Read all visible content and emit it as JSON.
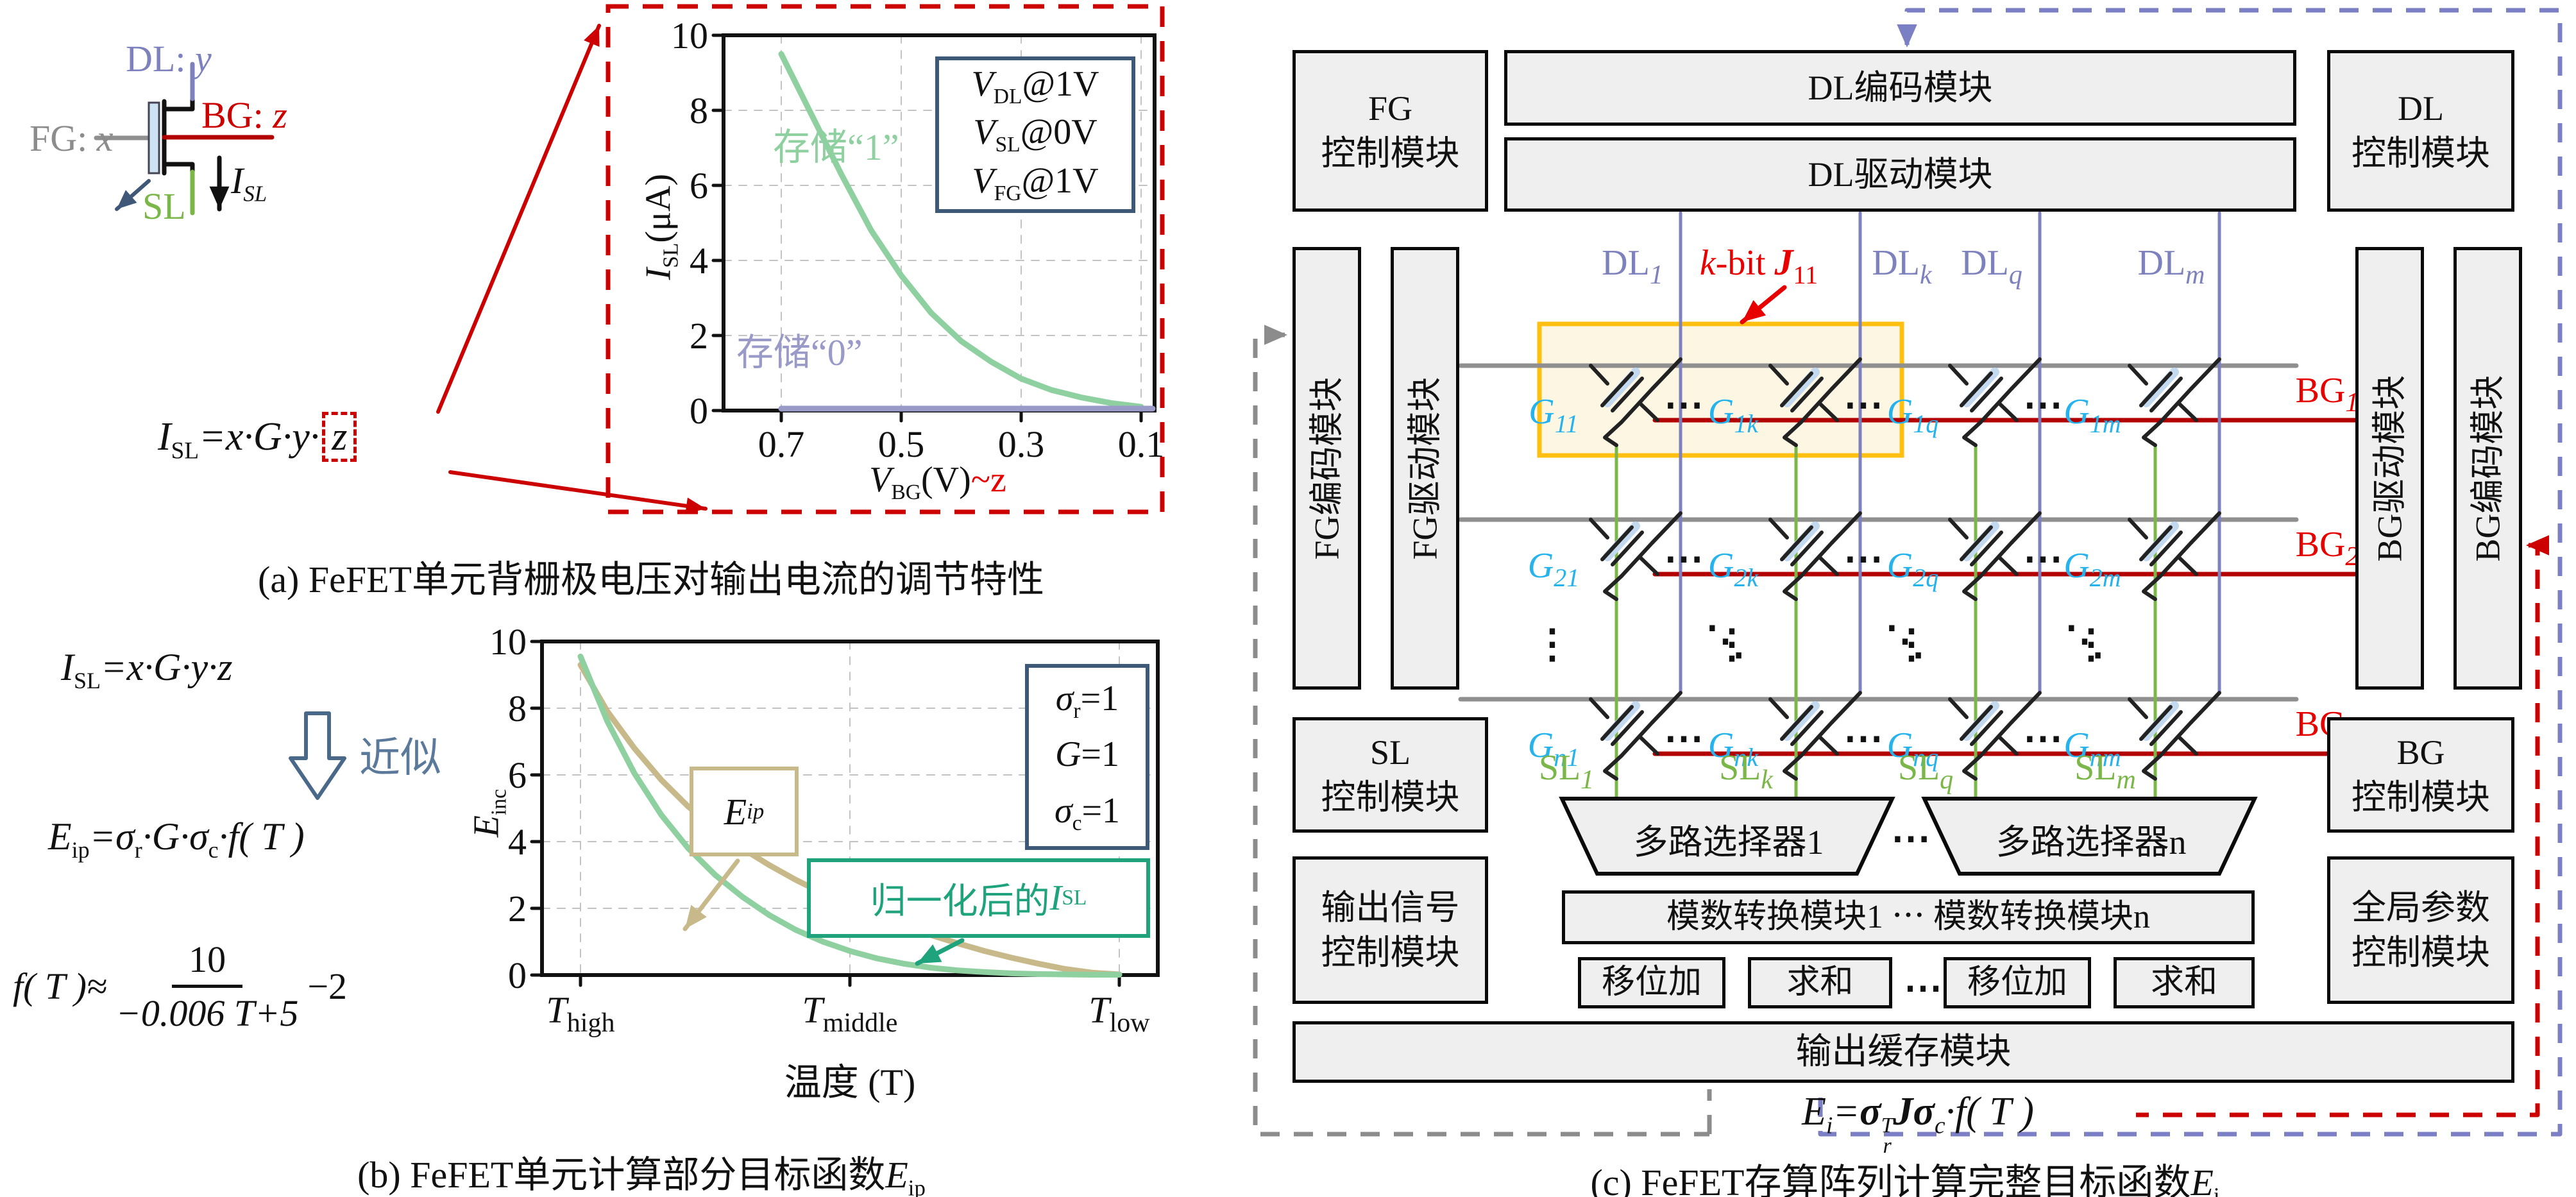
{
  "colors": {
    "purple": "#7d81bd",
    "purple_dash": "#7b7fc4",
    "gray": "#8c8c8c",
    "gray_line": "#8f8f8f",
    "red": "#cc0000",
    "red_bright": "#e80000",
    "bg_line": "#b30000",
    "green": "#7ab648",
    "curve_green": "#8fd0a0",
    "curve_purple": "#9a9ac8",
    "tan": "#c8b98a",
    "teal": "#1fa37c",
    "cyan": "#25b3ee",
    "slate": "#3e5877",
    "box_fill": "#efefef",
    "yellow": "#ffc011",
    "yellow_fill": "#fdf6e3"
  },
  "panel_a": {
    "caption": "(a) FeFET单元背栅极电压对输出电流的调节特性",
    "device": {
      "dl_label": "DL:",
      "dl_var": "y",
      "fg_label": "FG:",
      "fg_var": "x",
      "bg_label": "BG:",
      "bg_var": "z",
      "sl_label": "SL",
      "isl_main": "I",
      "isl_sub": "SL"
    },
    "equation": {
      "lhs": "I",
      "lhs_sub": "SL",
      "mid": "=x·G·y·",
      "boxed": "z"
    },
    "store1": "存储“1”",
    "store0": "存储“0”",
    "legend": [
      {
        "v": "V",
        "sub": "DL",
        "rest": "@1V"
      },
      {
        "v": "V",
        "sub": "SL",
        "rest": "@0V"
      },
      {
        "v": "V",
        "sub": "FG",
        "rest": "@1V"
      }
    ],
    "ylabel": {
      "pre": "I",
      "sub": "SL",
      "post": "(μA)"
    },
    "xlabel": {
      "pre": "V",
      "sub": "BG",
      "post": "(V)",
      "anno": "~z"
    }
  },
  "panel_b": {
    "caption_text": "(b) FeFET单元计算部分目标函数",
    "caption_var": "E",
    "caption_sub": "ip",
    "eq1": {
      "lhs": "I",
      "lhs_sub": "SL",
      "rhs": "=x·G·y·z"
    },
    "approx": "近似",
    "eq2": {
      "lhs": "E",
      "lhs_sub": "ip",
      "p1": "=σ",
      "s1": "r",
      "p2": "·G·σ",
      "s2": "c",
      "p3": "·f( T )"
    },
    "eq3": {
      "lhs": "f( T )≈",
      "num": "10",
      "den": "−0.006 T+5",
      "tail": "−2"
    },
    "eip_label": {
      "main": "E",
      "sub": "ip"
    },
    "norm_label": {
      "pre": "归一化后的",
      "main": "I",
      "sub": "SL"
    },
    "legend": [
      {
        "pre": "σ",
        "sub": "r",
        "post": "=1"
      },
      {
        "pre": "G",
        "sub": "",
        "post": "=1"
      },
      {
        "pre": "σ",
        "sub": "c",
        "post": "=1"
      }
    ],
    "ylabel": {
      "pre": "E",
      "sub": "inc"
    },
    "xlabel": "温度 (T)"
  },
  "panel_c": {
    "caption_text": "(c) FeFET存算阵列计算完整目标函数",
    "caption_var": "E",
    "caption_sub": "i",
    "modules": {
      "fg_ctrl": {
        "l1": "FG",
        "l2": "控制模块"
      },
      "dl_enc": "DL编码模块",
      "dl_drv": "DL驱动模块",
      "dl_ctrl": {
        "l1": "DL",
        "l2": "控制模块"
      },
      "fg_enc": "FG编码模块",
      "fg_drv": "FG驱动模块",
      "bg_drv": "BG驱动模块",
      "bg_enc": "BG编码模块",
      "sl_ctrl": {
        "l1": "SL",
        "l2": "控制模块"
      },
      "out_sig": {
        "l1": "输出信号",
        "l2": "控制模块"
      },
      "bg_ctrl": {
        "l1": "BG",
        "l2": "控制模块"
      },
      "gparam": {
        "l1": "全局参数",
        "l2": "控制模块"
      },
      "mux1": "多路选择器1",
      "mux_dots": "⋯",
      "muxn": "多路选择器n",
      "adc": "模数转换模块1 ⋯ 模数转换模块n",
      "shift_a": "移位加",
      "sum_a": "求和",
      "ss_dots": "⋯",
      "shift_b": "移位加",
      "sum_b": "求和",
      "buffer": "输出缓存模块"
    },
    "array": {
      "dl_labels": [
        {
          "main": "DL",
          "sub": "1"
        },
        {
          "main": "DL",
          "sub": "k"
        },
        {
          "main": "DL",
          "sub": "q"
        },
        {
          "main": "DL",
          "sub": "m"
        }
      ],
      "bg_labels": [
        {
          "main": "BG",
          "sub": "1"
        },
        {
          "main": "BG",
          "sub": "2"
        },
        {
          "main": "BG",
          "sub": "n"
        }
      ],
      "sl_labels": [
        {
          "main": "SL",
          "sub": "1"
        },
        {
          "main": "SL",
          "sub": "k"
        },
        {
          "main": "SL",
          "sub": "q"
        },
        {
          "main": "SL",
          "sub": "m"
        }
      ],
      "g_main": "G",
      "g_subs": [
        [
          "11",
          "1k",
          "1q",
          "1m"
        ],
        [
          "21",
          "2k",
          "2q",
          "2m"
        ],
        [
          "n1",
          "nk",
          "nq",
          "nm"
        ]
      ],
      "kbit": {
        "k": "k",
        "bit": "-bit ",
        "J": "J",
        "sub": "11"
      },
      "col_dots": "⋯",
      "vdots": "⋮",
      "ddots": "⋱"
    },
    "formula": {
      "e": "E",
      "e_sub": "i",
      "eq": "=",
      "s1": "σ",
      "s1_sup": "T",
      "s1_sub": "r",
      "J": "J",
      "s2": "σ",
      "s2_sub": "c",
      "tail": "·f( T )"
    }
  },
  "chart_data": [
    {
      "type": "line",
      "title": "",
      "xlabel": "V_BG(V)~z",
      "ylabel": "I_SL(μA)",
      "ylim": [
        0,
        10
      ],
      "y_ticks": [
        10,
        8,
        6,
        4,
        2,
        0
      ],
      "x_ticks": [
        0.7,
        0.5,
        0.3,
        0.1
      ],
      "x_axis_reversed": true,
      "grid": true,
      "legend_position": "upper right",
      "legend": [
        "V_DL@1V",
        "V_SL@0V",
        "V_FG@1V"
      ],
      "series": [
        {
          "name": "存储“1”",
          "color": "#8fd0a0",
          "x": [
            0.7,
            0.65,
            0.6,
            0.55,
            0.5,
            0.45,
            0.4,
            0.35,
            0.3,
            0.25,
            0.2,
            0.15,
            0.1
          ],
          "y": [
            9.5,
            7.9,
            6.3,
            4.8,
            3.6,
            2.6,
            1.85,
            1.3,
            0.85,
            0.55,
            0.35,
            0.2,
            0.1
          ]
        },
        {
          "name": "存储“0”",
          "color": "#9a9ac8",
          "x": [
            0.7,
            0.1
          ],
          "y": [
            0,
            0
          ]
        }
      ]
    },
    {
      "type": "line",
      "title": "",
      "xlabel": "温度 (T)",
      "ylabel": "E_inc",
      "ylim": [
        0,
        10
      ],
      "y_ticks": [
        10,
        8,
        6,
        4,
        2,
        0
      ],
      "x_ticks": [
        "T_high",
        "T_middle",
        "T_low"
      ],
      "grid": true,
      "legend_position": "upper right",
      "legend": [
        "σ_r=1",
        "G=1",
        "σ_c=1"
      ],
      "series": [
        {
          "name": "E_ip",
          "color": "#c8b98a",
          "x": [
            0,
            0.05,
            0.1,
            0.15,
            0.2,
            0.25,
            0.3,
            0.35,
            0.4,
            0.45,
            0.5,
            0.55,
            0.6,
            0.65,
            0.7,
            0.75,
            0.8,
            0.85,
            0.9,
            0.95,
            1
          ],
          "y": [
            9.3,
            7.9,
            6.8,
            5.85,
            5.05,
            4.4,
            3.8,
            3.3,
            2.85,
            2.45,
            2.1,
            1.75,
            1.45,
            1.2,
            0.95,
            0.72,
            0.52,
            0.34,
            0.18,
            0.07,
            0.02
          ]
        },
        {
          "name": "归一化后的I_SL",
          "color": "#8fd0a0",
          "x": [
            0,
            0.05,
            0.1,
            0.15,
            0.2,
            0.25,
            0.3,
            0.35,
            0.4,
            0.45,
            0.5,
            0.55,
            0.6,
            0.65,
            0.7,
            0.75,
            0.8,
            0.85,
            0.9,
            0.95,
            1
          ],
          "y": [
            9.55,
            7.6,
            6.05,
            4.8,
            3.8,
            3.0,
            2.35,
            1.8,
            1.35,
            1.0,
            0.72,
            0.5,
            0.34,
            0.22,
            0.14,
            0.09,
            0.05,
            0.03,
            0.02,
            0.01,
            0.01
          ]
        }
      ]
    }
  ]
}
